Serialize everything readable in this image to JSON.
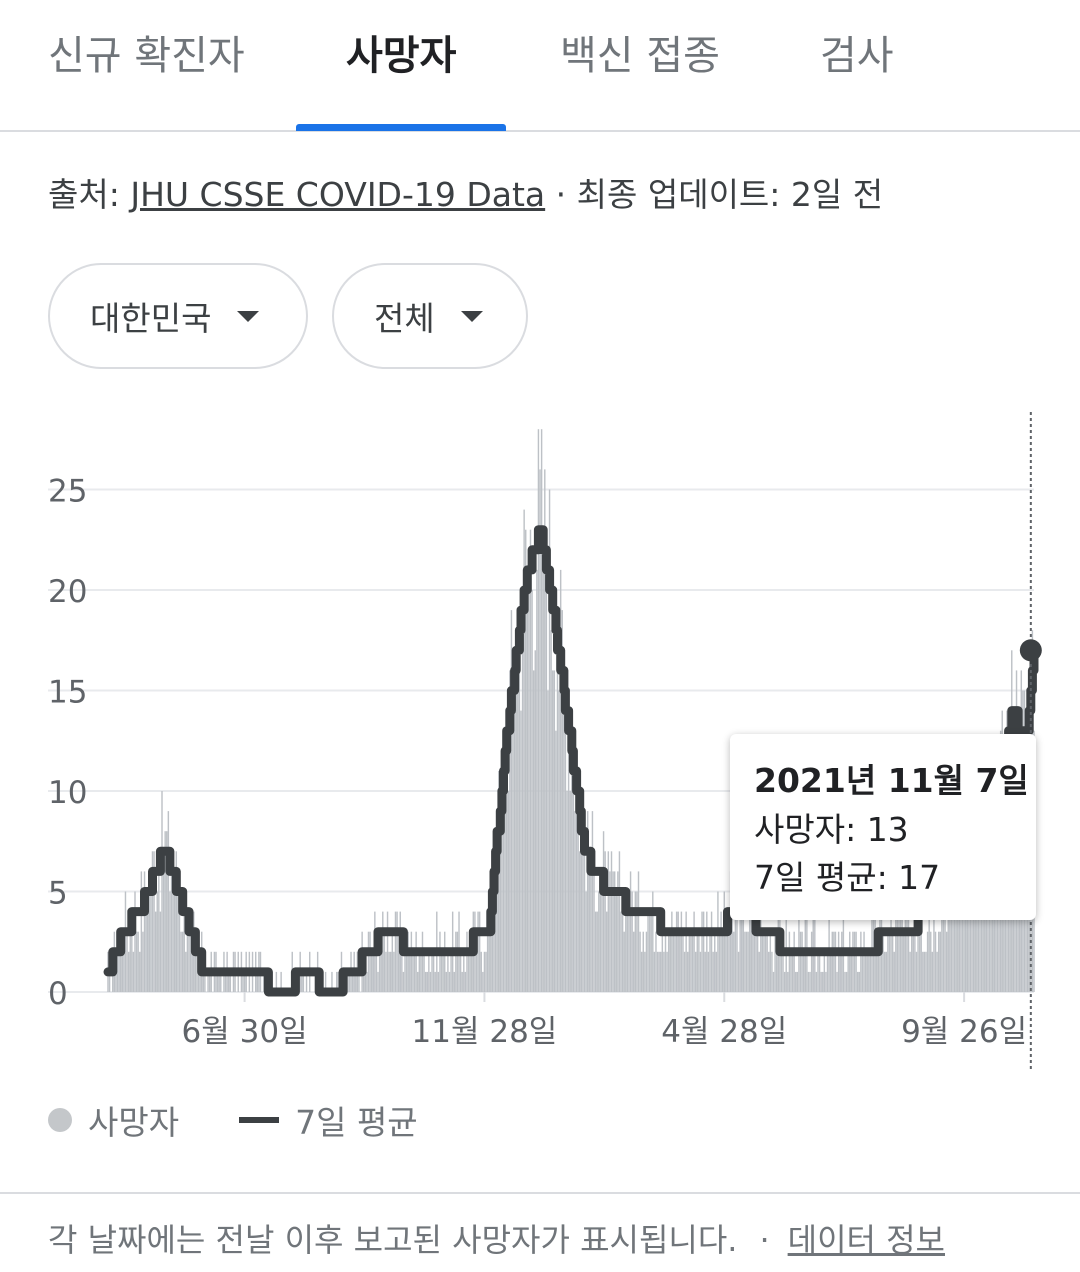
{
  "tabs": [
    {
      "label": "신규 확진자"
    },
    {
      "label": "사망자"
    },
    {
      "label": "백신 접종"
    },
    {
      "label": "검사"
    }
  ],
  "source": {
    "prefix": "출처:",
    "link": "JHU CSSE COVID-19 Data",
    "updated": "· 최종 업데이트: 2일 전"
  },
  "filters": {
    "region": "대한민국",
    "scope": "전체"
  },
  "tooltip": {
    "date": "2021년 11월 7일",
    "deaths": "사망자: 13",
    "avg": "7일 평균: 17"
  },
  "legend": {
    "deaths": "사망자",
    "avg": "7일 평균"
  },
  "footer": {
    "note": "각 날짜에는 전날 이후 보고된 사망자가 표시됩니다.",
    "sep": "·",
    "link": "데이터 정보"
  },
  "colors": {
    "bars": "#bdc1c6",
    "avg_line": "#3c4043",
    "grid": "#e8eaed",
    "accent": "#1a73e8"
  },
  "chart_data": {
    "type": "bar",
    "title": "",
    "xlabel": "",
    "ylabel": "",
    "ylim": [
      0,
      29
    ],
    "y_ticks": [
      0,
      5,
      10,
      15,
      20,
      25
    ],
    "x_ticks": [
      {
        "label": "6월 30일",
        "index": 86
      },
      {
        "label": "11월 28일",
        "index": 237
      },
      {
        "label": "4월 28일",
        "index": 388
      },
      {
        "label": "9월 26일",
        "index": 539
      }
    ],
    "hovered_index": 581,
    "hovered_point": {
      "date": "2021년 11월 7일",
      "deaths": 13,
      "avg": 17
    },
    "series": [
      {
        "name": "사망자",
        "type": "bar",
        "control_points": [
          {
            "x": 0,
            "y": 1
          },
          {
            "x": 10,
            "y": 3
          },
          {
            "x": 20,
            "y": 4
          },
          {
            "x": 30,
            "y": 6
          },
          {
            "x": 36,
            "y": 7
          },
          {
            "x": 44,
            "y": 5
          },
          {
            "x": 52,
            "y": 3
          },
          {
            "x": 60,
            "y": 1
          },
          {
            "x": 90,
            "y": 1
          },
          {
            "x": 110,
            "y": 0
          },
          {
            "x": 125,
            "y": 1
          },
          {
            "x": 140,
            "y": 0
          },
          {
            "x": 155,
            "y": 1
          },
          {
            "x": 175,
            "y": 3
          },
          {
            "x": 195,
            "y": 2
          },
          {
            "x": 220,
            "y": 2
          },
          {
            "x": 240,
            "y": 3
          },
          {
            "x": 250,
            "y": 12
          },
          {
            "x": 262,
            "y": 20
          },
          {
            "x": 272,
            "y": 23
          },
          {
            "x": 282,
            "y": 18
          },
          {
            "x": 292,
            "y": 12
          },
          {
            "x": 300,
            "y": 7
          },
          {
            "x": 315,
            "y": 5
          },
          {
            "x": 335,
            "y": 4
          },
          {
            "x": 360,
            "y": 3
          },
          {
            "x": 380,
            "y": 3
          },
          {
            "x": 400,
            "y": 4
          },
          {
            "x": 430,
            "y": 2
          },
          {
            "x": 470,
            "y": 2
          },
          {
            "x": 500,
            "y": 3
          },
          {
            "x": 520,
            "y": 4
          },
          {
            "x": 545,
            "y": 6
          },
          {
            "x": 560,
            "y": 9
          },
          {
            "x": 570,
            "y": 14
          },
          {
            "x": 578,
            "y": 12
          },
          {
            "x": 583,
            "y": 17
          }
        ]
      },
      {
        "name": "7일 평균",
        "type": "line",
        "control_points": [
          {
            "x": 0,
            "y": 1
          },
          {
            "x": 10,
            "y": 3
          },
          {
            "x": 20,
            "y": 4
          },
          {
            "x": 30,
            "y": 6
          },
          {
            "x": 36,
            "y": 7
          },
          {
            "x": 44,
            "y": 5
          },
          {
            "x": 52,
            "y": 3
          },
          {
            "x": 60,
            "y": 1
          },
          {
            "x": 90,
            "y": 1
          },
          {
            "x": 110,
            "y": 0
          },
          {
            "x": 125,
            "y": 1
          },
          {
            "x": 140,
            "y": 0
          },
          {
            "x": 155,
            "y": 1
          },
          {
            "x": 175,
            "y": 3
          },
          {
            "x": 195,
            "y": 2
          },
          {
            "x": 220,
            "y": 2
          },
          {
            "x": 240,
            "y": 3
          },
          {
            "x": 250,
            "y": 12
          },
          {
            "x": 262,
            "y": 20
          },
          {
            "x": 272,
            "y": 23
          },
          {
            "x": 282,
            "y": 18
          },
          {
            "x": 292,
            "y": 12
          },
          {
            "x": 300,
            "y": 7
          },
          {
            "x": 315,
            "y": 5
          },
          {
            "x": 335,
            "y": 4
          },
          {
            "x": 360,
            "y": 3
          },
          {
            "x": 380,
            "y": 3
          },
          {
            "x": 400,
            "y": 4
          },
          {
            "x": 430,
            "y": 2
          },
          {
            "x": 470,
            "y": 2
          },
          {
            "x": 500,
            "y": 3
          },
          {
            "x": 520,
            "y": 4
          },
          {
            "x": 545,
            "y": 6
          },
          {
            "x": 560,
            "y": 9
          },
          {
            "x": 570,
            "y": 14
          },
          {
            "x": 578,
            "y": 12
          },
          {
            "x": 583,
            "y": 17
          }
        ]
      }
    ]
  }
}
